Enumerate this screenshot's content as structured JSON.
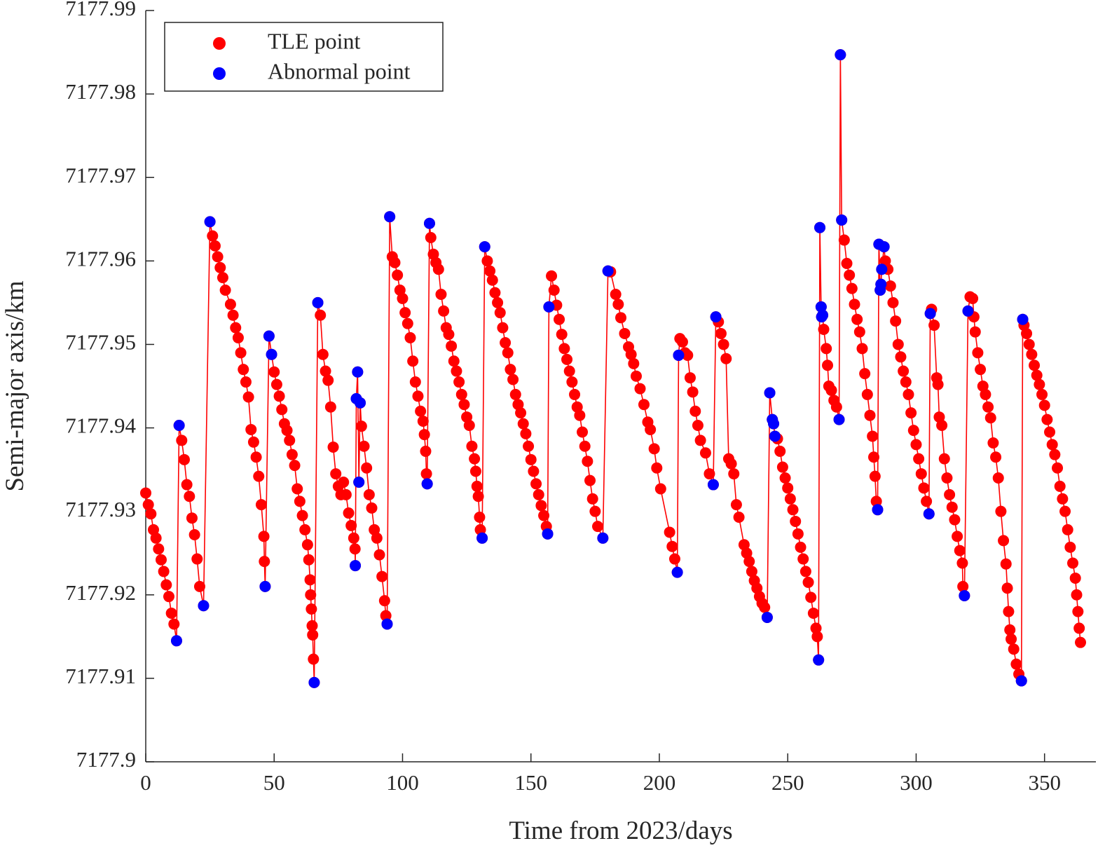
{
  "chart_data": {
    "type": "scatter",
    "x_label": "Time from 2023/days",
    "y_label": "Semi-major axis/km",
    "xlim": [
      0,
      370
    ],
    "xticks": [
      0,
      50,
      100,
      150,
      200,
      250,
      300,
      350
    ],
    "ylim": [
      7177.9,
      7177.99
    ],
    "yticks": [
      7177.9,
      7177.91,
      7177.92,
      7177.93,
      7177.94,
      7177.95,
      7177.96,
      7177.97,
      7177.98,
      7177.99
    ],
    "legend": "upper left",
    "series": [
      {
        "name": "TLE point",
        "color": "#ff0000",
        "line": true,
        "x": [
          0,
          1,
          2,
          3,
          4,
          5,
          6,
          7,
          8,
          9,
          10,
          11,
          12,
          13,
          14,
          15,
          16,
          17,
          18,
          19,
          20,
          21,
          22.5,
          25,
          26,
          27,
          28,
          29,
          30,
          31,
          33,
          34,
          35,
          36,
          37,
          38,
          39,
          40,
          41,
          42,
          43,
          44,
          45,
          46,
          46.2,
          46.5,
          48,
          49,
          50,
          51,
          52,
          53,
          54,
          55,
          56,
          57,
          58,
          59,
          60,
          61,
          62,
          63,
          63.5,
          64,
          64.2,
          64.5,
          64.8,
          65,
          65.3,
          65.6,
          67,
          68,
          69,
          70,
          71,
          72,
          73,
          74,
          75,
          76,
          77,
          78,
          79,
          80,
          81,
          81.5,
          81.6,
          82,
          82.5,
          83,
          83.5,
          84,
          85,
          86,
          87,
          88,
          89,
          90,
          91,
          92,
          93,
          93.5,
          94,
          95,
          96,
          97,
          98,
          99,
          100,
          101,
          102,
          103,
          104,
          105,
          106,
          107,
          108,
          108.5,
          109,
          109.3,
          109.6,
          110.5,
          111,
          112,
          113,
          114,
          115,
          116,
          117,
          118,
          119,
          120,
          121,
          122,
          123,
          124,
          125,
          126,
          127,
          128,
          128.5,
          129,
          129.5,
          130,
          130.3,
          131,
          132,
          133,
          134,
          135,
          136,
          137,
          138,
          139,
          140,
          141,
          142,
          143,
          144,
          145,
          146,
          147,
          148,
          149,
          150,
          151,
          152,
          153,
          154,
          155,
          156,
          156.5,
          157,
          158,
          159,
          160,
          161,
          162,
          163,
          164,
          165,
          166,
          167,
          168,
          169,
          170,
          171,
          172,
          173,
          174,
          175,
          176,
          178,
          180,
          181,
          183,
          184,
          185,
          186.5,
          188,
          189,
          190,
          191,
          192.5,
          194,
          195.5,
          196.5,
          198,
          199,
          200.5,
          204,
          205,
          206,
          207,
          207.5,
          208,
          209,
          210,
          211,
          212,
          213,
          214,
          215,
          216,
          218,
          219.5,
          221,
          222,
          223,
          224,
          225,
          226,
          227,
          228,
          229,
          230,
          231,
          233,
          234,
          235,
          236,
          237,
          238,
          239,
          240,
          241,
          242,
          243,
          244,
          244.5,
          245,
          246,
          247,
          248,
          249,
          250,
          251,
          252,
          253,
          254,
          255,
          256,
          257,
          258,
          259,
          260,
          261,
          261.5,
          262,
          262.5,
          263,
          263.2,
          263.6,
          264,
          265,
          265.5,
          266,
          267,
          268,
          269,
          270,
          270.5,
          271,
          272,
          273,
          274,
          275,
          276,
          277,
          278,
          279,
          280,
          281,
          282,
          283,
          283.5,
          284,
          284.5,
          285,
          285.5,
          286,
          286.3,
          286.6,
          287.5,
          288,
          289,
          290,
          291,
          292,
          293,
          294,
          295,
          296,
          297,
          298,
          299,
          300,
          301,
          302,
          303,
          304,
          305,
          305.5,
          306,
          307,
          308,
          308.5,
          309,
          310,
          311,
          312,
          313,
          314,
          315,
          316,
          317,
          318,
          318.2,
          318.8,
          320.2,
          321,
          322,
          322.5,
          323,
          324,
          325,
          326,
          327,
          328,
          329,
          330,
          331,
          332,
          333,
          334,
          335,
          335.5,
          336,
          336.5,
          337,
          338,
          339,
          340,
          341,
          341.5,
          342,
          343,
          344,
          345,
          346,
          347,
          348,
          349,
          350,
          351,
          352,
          353,
          354,
          355,
          356,
          357,
          358,
          359,
          360,
          361,
          362,
          362.5,
          363,
          363.5,
          364
        ],
        "values": [
          7177.9322,
          7177.9308,
          7177.9297,
          7177.9278,
          7177.9268,
          7177.9255,
          7177.9242,
          7177.9228,
          7177.9212,
          7177.9198,
          7177.9178,
          7177.9165,
          7177.9145,
          7177.9403,
          7177.9385,
          7177.9362,
          7177.9332,
          7177.9318,
          7177.9292,
          7177.9272,
          7177.9243,
          7177.921,
          7177.9187,
          7177.9647,
          7177.963,
          7177.9618,
          7177.9605,
          7177.9592,
          7177.958,
          7177.9565,
          7177.9548,
          7177.9535,
          7177.952,
          7177.9508,
          7177.949,
          7177.947,
          7177.9455,
          7177.9437,
          7177.9398,
          7177.9383,
          7177.9365,
          7177.9342,
          7177.9308,
          7177.927,
          7177.924,
          7177.921,
          7177.951,
          7177.9488,
          7177.9467,
          7177.9452,
          7177.9438,
          7177.9422,
          7177.9405,
          7177.9397,
          7177.9385,
          7177.9368,
          7177.9355,
          7177.9327,
          7177.9312,
          7177.9295,
          7177.9278,
          7177.926,
          7177.9242,
          7177.9218,
          7177.92,
          7177.9183,
          7177.9163,
          7177.9152,
          7177.9123,
          7177.9095,
          7177.955,
          7177.9535,
          7177.9488,
          7177.9468,
          7177.9457,
          7177.9425,
          7177.9377,
          7177.9345,
          7177.933,
          7177.932,
          7177.9335,
          7177.932,
          7177.9298,
          7177.9283,
          7177.9268,
          7177.9255,
          7177.9235,
          7177.9435,
          7177.9467,
          7177.9335,
          7177.943,
          7177.9402,
          7177.9378,
          7177.9352,
          7177.932,
          7177.9304,
          7177.9278,
          7177.9268,
          7177.9248,
          7177.9222,
          7177.9193,
          7177.9175,
          7177.9165,
          7177.9653,
          7177.9605,
          7177.9598,
          7177.9583,
          7177.9565,
          7177.9555,
          7177.9538,
          7177.9525,
          7177.9508,
          7177.948,
          7177.9455,
          7177.9438,
          7177.942,
          7177.9408,
          7177.9392,
          7177.9372,
          7177.9345,
          7177.9333,
          7177.9645,
          7177.9628,
          7177.9608,
          7177.9598,
          7177.959,
          7177.956,
          7177.954,
          7177.952,
          7177.9512,
          7177.9498,
          7177.948,
          7177.9468,
          7177.9455,
          7177.944,
          7177.9428,
          7177.9413,
          7177.9403,
          7177.9378,
          7177.9363,
          7177.9348,
          7177.933,
          7177.9318,
          7177.9293,
          7177.9278,
          7177.9268,
          7177.9617,
          7177.96,
          7177.9588,
          7177.9577,
          7177.9562,
          7177.955,
          7177.9538,
          7177.952,
          7177.9502,
          7177.949,
          7177.947,
          7177.9458,
          7177.944,
          7177.9428,
          7177.9418,
          7177.9405,
          7177.9393,
          7177.9378,
          7177.9362,
          7177.9348,
          7177.9333,
          7177.932,
          7177.9307,
          7177.9295,
          7177.9282,
          7177.9273,
          7177.9545,
          7177.9582,
          7177.9565,
          7177.9547,
          7177.953,
          7177.9512,
          7177.9495,
          7177.9482,
          7177.9468,
          7177.9455,
          7177.944,
          7177.9425,
          7177.9415,
          7177.9395,
          7177.9378,
          7177.936,
          7177.9337,
          7177.9315,
          7177.93,
          7177.9282,
          7177.9268,
          7177.9588,
          7177.9587,
          7177.956,
          7177.9548,
          7177.9532,
          7177.9513,
          7177.9497,
          7177.9488,
          7177.9477,
          7177.9462,
          7177.9447,
          7177.9428,
          7177.9407,
          7177.9398,
          7177.9375,
          7177.9352,
          7177.9327,
          7177.9275,
          7177.9258,
          7177.9243,
          7177.9227,
          7177.9487,
          7177.9507,
          7177.9503,
          7177.949,
          7177.9487,
          7177.946,
          7177.9443,
          7177.942,
          7177.9403,
          7177.9385,
          7177.937,
          7177.9345,
          7177.9332,
          7177.9533,
          7177.9527,
          7177.9513,
          7177.95,
          7177.9483,
          7177.9363,
          7177.9357,
          7177.9345,
          7177.9308,
          7177.9293,
          7177.926,
          7177.925,
          7177.924,
          7177.9228,
          7177.9217,
          7177.9208,
          7177.9198,
          7177.919,
          7177.9185,
          7177.9173,
          7177.9442,
          7177.941,
          7177.9405,
          7177.939,
          7177.9387,
          7177.9372,
          7177.9353,
          7177.934,
          7177.9328,
          7177.9315,
          7177.9302,
          7177.9288,
          7177.9273,
          7177.9257,
          7177.9243,
          7177.9228,
          7177.9215,
          7177.9197,
          7177.9178,
          7177.916,
          7177.915,
          7177.9122,
          7177.964,
          7177.9545,
          7177.9533,
          7177.9535,
          7177.9518,
          7177.9495,
          7177.9475,
          7177.945,
          7177.9445,
          7177.9433,
          7177.9425,
          7177.941,
          7177.9847,
          7177.9649,
          7177.9625,
          7177.9597,
          7177.9583,
          7177.9567,
          7177.9548,
          7177.953,
          7177.9515,
          7177.9495,
          7177.9465,
          7177.944,
          7177.9415,
          7177.939,
          7177.9365,
          7177.9342,
          7177.9312,
          7177.9302,
          7177.962,
          7177.9565,
          7177.9572,
          7177.959,
          7177.9617,
          7177.96,
          7177.959,
          7177.957,
          7177.955,
          7177.9528,
          7177.95,
          7177.9485,
          7177.9468,
          7177.9455,
          7177.944,
          7177.9418,
          7177.9397,
          7177.938,
          7177.9363,
          7177.9345,
          7177.9328,
          7177.9312,
          7177.9297,
          7177.9537,
          7177.9542,
          7177.9523,
          7177.946,
          7177.9452,
          7177.9413,
          7177.9403,
          7177.9363,
          7177.934,
          7177.932,
          7177.9305,
          7177.929,
          7177.927,
          7177.9253,
          7177.9238,
          7177.921,
          7177.9199,
          7177.954,
          7177.9557,
          7177.9555,
          7177.9533,
          7177.9515,
          7177.949,
          7177.947,
          7177.945,
          7177.944,
          7177.9425,
          7177.9412,
          7177.9382,
          7177.9365,
          7177.934,
          7177.93,
          7177.9265,
          7177.9237,
          7177.9208,
          7177.918,
          7177.9158,
          7177.9147,
          7177.9135,
          7177.9117,
          7177.9105,
          7177.9097,
          7177.953,
          7177.9523,
          7177.9513,
          7177.95,
          7177.9488,
          7177.9475,
          7177.9463,
          7177.9452,
          7177.944,
          7177.9427,
          7177.941,
          7177.9395,
          7177.938,
          7177.9368,
          7177.9352,
          7177.933,
          7177.9315,
          7177.93,
          7177.9278,
          7177.9257,
          7177.9238,
          7177.922,
          7177.92,
          7177.918,
          7177.916,
          7177.9143
        ]
      },
      {
        "name": "Abnormal point",
        "color": "#0000ff",
        "x": [
          12,
          13,
          22.5,
          25,
          46.5,
          48,
          49,
          65.6,
          67,
          81.6,
          82,
          82.5,
          83,
          83.5,
          94,
          95,
          109.6,
          110.5,
          131,
          132,
          156.5,
          157,
          178,
          180,
          207,
          207.5,
          221,
          222,
          242,
          243,
          244,
          244.5,
          245,
          262,
          262.5,
          263,
          263.2,
          263.6,
          270,
          270.5,
          271,
          285,
          285.5,
          286,
          286.3,
          286.6,
          287.5,
          305,
          305.5,
          318.8,
          320.2,
          341,
          341.5
        ],
        "values": [
          7177.9145,
          7177.9403,
          7177.9187,
          7177.9647,
          7177.921,
          7177.951,
          7177.9488,
          7177.9095,
          7177.955,
          7177.9235,
          7177.9435,
          7177.9467,
          7177.9335,
          7177.943,
          7177.9165,
          7177.9653,
          7177.9333,
          7177.9645,
          7177.9268,
          7177.9617,
          7177.9273,
          7177.9545,
          7177.9268,
          7177.9588,
          7177.9227,
          7177.9487,
          7177.9332,
          7177.9533,
          7177.9173,
          7177.9442,
          7177.941,
          7177.9405,
          7177.939,
          7177.9122,
          7177.964,
          7177.9545,
          7177.9533,
          7177.9535,
          7177.941,
          7177.9847,
          7177.9649,
          7177.9302,
          7177.962,
          7177.9565,
          7177.9572,
          7177.959,
          7177.9617,
          7177.9297,
          7177.9537,
          7177.9199,
          7177.954,
          7177.9097,
          7177.953
        ]
      }
    ]
  }
}
